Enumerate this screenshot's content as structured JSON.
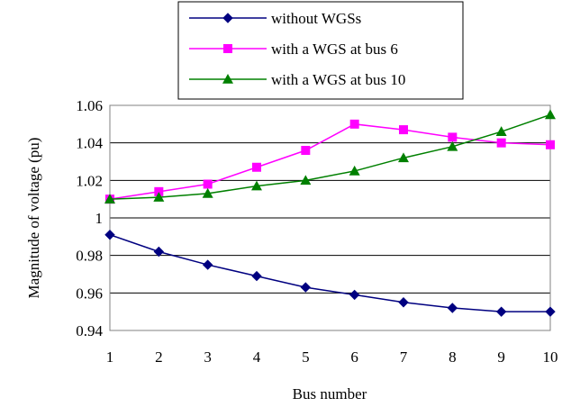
{
  "chart_data": {
    "type": "line",
    "title": "",
    "xlabel": "Bus number",
    "ylabel": "Magnitude of voltage (pu)",
    "x": [
      1,
      2,
      3,
      4,
      5,
      6,
      7,
      8,
      9,
      10
    ],
    "xlim": [
      1,
      10
    ],
    "ylim": [
      0.94,
      1.06
    ],
    "yticks": [
      "0.94",
      "0.96",
      "0.98",
      "1",
      "1.02",
      "1.04",
      "1.06"
    ],
    "ytick_values": [
      0.94,
      0.96,
      0.98,
      1.0,
      1.02,
      1.04,
      1.06
    ],
    "grid": true,
    "legend_position": "top-right",
    "series": [
      {
        "name": "without WGSs",
        "color": "#000080",
        "marker": "diamond",
        "values": [
          0.991,
          0.982,
          0.975,
          0.969,
          0.963,
          0.959,
          0.955,
          0.952,
          0.95,
          0.95
        ]
      },
      {
        "name": "with a WGS at bus 6",
        "color": "#FF00FF",
        "marker": "square",
        "values": [
          1.01,
          1.014,
          1.018,
          1.027,
          1.036,
          1.05,
          1.047,
          1.043,
          1.04,
          1.039
        ]
      },
      {
        "name": "with a WGS at bus 10",
        "color": "#008000",
        "marker": "triangle",
        "values": [
          1.01,
          1.011,
          1.013,
          1.017,
          1.02,
          1.025,
          1.032,
          1.038,
          1.046,
          1.055
        ]
      }
    ]
  }
}
